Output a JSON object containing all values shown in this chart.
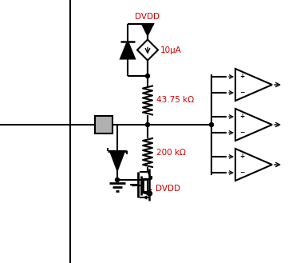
{
  "bg_color": "#ffffff",
  "line_color": "#000000",
  "label_color": "#cc0000",
  "dvdd_top_label": "DVDD",
  "dvdd_bottom_label": "DVDD",
  "current_label": "10μA",
  "r1_label": "43.75 kΩ",
  "r2_label": "200 kΩ",
  "figsize": [
    3.76,
    3.29
  ],
  "dpi": 100
}
